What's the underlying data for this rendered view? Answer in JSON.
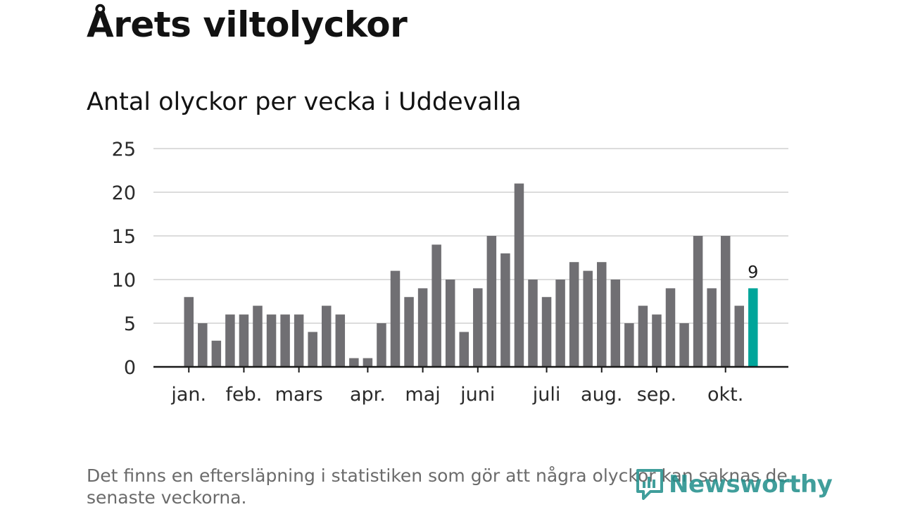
{
  "header": {
    "title": "Årets viltolyckor",
    "subtitle": "Antal olyckor per vecka i Uddevalla"
  },
  "footnote": "Det finns en eftersläpning i statistiken som gör att några olyckor kan saknas de senaste veckorna.",
  "logo": {
    "text": "Newsworthy",
    "icon": "newsworthy-logo-icon"
  },
  "colors": {
    "bar": "#706f73",
    "highlight": "#00a59a",
    "grid": "#dcdcdc",
    "axis": "#1a1a1a"
  },
  "chart_data": {
    "type": "bar",
    "title": "Antal olyckor per vecka i Uddevalla",
    "xlabel": "",
    "ylabel": "",
    "ylim": [
      0,
      25
    ],
    "yticks": [
      0,
      5,
      10,
      15,
      20,
      25
    ],
    "grid": true,
    "values": [
      8,
      5,
      3,
      6,
      6,
      7,
      6,
      6,
      6,
      4,
      7,
      6,
      1,
      1,
      5,
      11,
      8,
      9,
      14,
      10,
      4,
      9,
      15,
      13,
      21,
      10,
      8,
      10,
      12,
      11,
      12,
      10,
      5,
      7,
      6,
      9,
      5,
      15,
      9,
      15,
      7,
      9
    ],
    "highlight_index": 41,
    "highlight_label": "9",
    "month_labels": [
      {
        "label": "jan.",
        "bar_index": 0
      },
      {
        "label": "feb.",
        "bar_index": 4
      },
      {
        "label": "mars",
        "bar_index": 8
      },
      {
        "label": "apr.",
        "bar_index": 13
      },
      {
        "label": "maj",
        "bar_index": 17
      },
      {
        "label": "juni",
        "bar_index": 21
      },
      {
        "label": "juli",
        "bar_index": 26
      },
      {
        "label": "aug.",
        "bar_index": 30
      },
      {
        "label": "sep.",
        "bar_index": 34
      },
      {
        "label": "okt.",
        "bar_index": 39
      }
    ]
  }
}
